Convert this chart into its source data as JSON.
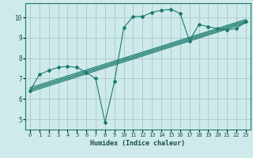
{
  "xlabel": "Humidex (Indice chaleur)",
  "xlim": [
    -0.5,
    23.5
  ],
  "ylim": [
    4.5,
    10.7
  ],
  "yticks": [
    5,
    6,
    7,
    8,
    9,
    10
  ],
  "xticks": [
    0,
    1,
    2,
    3,
    4,
    5,
    6,
    7,
    8,
    9,
    10,
    11,
    12,
    13,
    14,
    15,
    16,
    17,
    18,
    19,
    20,
    21,
    22,
    23
  ],
  "bg_color": "#ceeaea",
  "grid_color": "#b0cccc",
  "line_color": "#1a7a6e",
  "curve_x": [
    0,
    1,
    2,
    3,
    4,
    5,
    6,
    7,
    8,
    9,
    10,
    11,
    12,
    13,
    14,
    15,
    16,
    17,
    18,
    19,
    20,
    21,
    22,
    23
  ],
  "curve_y": [
    6.4,
    7.2,
    7.4,
    7.55,
    7.6,
    7.55,
    7.3,
    7.0,
    4.85,
    6.85,
    9.5,
    10.05,
    10.05,
    10.25,
    10.35,
    10.4,
    10.2,
    8.85,
    9.65,
    9.55,
    9.45,
    9.4,
    9.45,
    9.8
  ],
  "reg_lines": [
    {
      "x": [
        0,
        23
      ],
      "y": [
        6.35,
        9.72
      ]
    },
    {
      "x": [
        0,
        23
      ],
      "y": [
        6.42,
        9.78
      ]
    },
    {
      "x": [
        0,
        23
      ],
      "y": [
        6.48,
        9.84
      ]
    },
    {
      "x": [
        0,
        23
      ],
      "y": [
        6.55,
        9.9
      ]
    }
  ]
}
